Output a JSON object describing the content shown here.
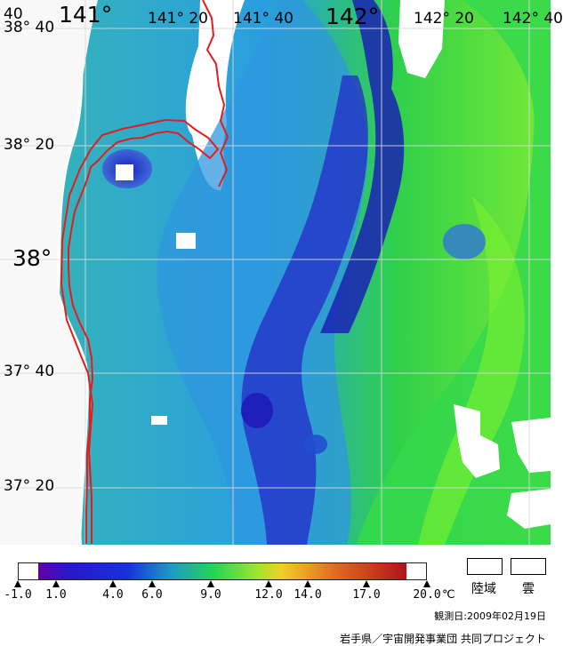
{
  "map": {
    "lon_labels": [
      "40",
      "141°",
      "141° 20",
      "141° 40",
      "142°",
      "142° 20",
      "142° 40"
    ],
    "lat_labels": [
      "38° 40",
      "38° 20",
      "38°",
      "37° 40",
      "37° 20"
    ]
  },
  "legend": {
    "tick_labels": [
      "-1.0",
      "1.0",
      "4.0",
      "6.0",
      "9.0",
      "12.0",
      "14.0",
      "17.0",
      "20.0"
    ],
    "tick_values": [
      -1.0,
      1.0,
      4.0,
      6.0,
      9.0,
      12.0,
      14.0,
      17.0,
      20.0
    ],
    "unit": "℃",
    "land_label": "陸域",
    "cloud_label": "雲",
    "observation_date": "観測日:2009年02月19日",
    "credit": "岩手県／宇宙開発事業団 共同プロジェクト"
  },
  "colors": {
    "coastline": "#e31d1d",
    "grid": "#d8d8d8",
    "cold_blue": "#1e1ebb",
    "mid_blue": "#2e6de0",
    "teal": "#30b8a4",
    "green": "#32d84a",
    "yellow_green": "#8cf030",
    "white_mask": "#ffffff"
  }
}
